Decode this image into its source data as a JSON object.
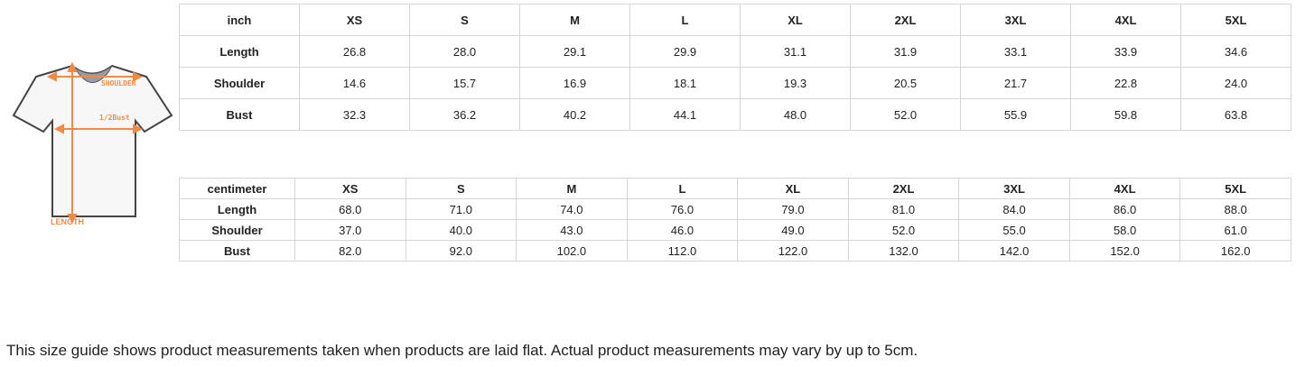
{
  "diagram": {
    "labels": {
      "shoulder": "SHOULDER",
      "bust": "1/2Bust",
      "length": "LENGTH"
    },
    "accent_color": "#f08a45"
  },
  "inch_table": {
    "headers": [
      "inch",
      "XS",
      "S",
      "M",
      "L",
      "XL",
      "2XL",
      "3XL",
      "4XL",
      "5XL"
    ],
    "rows": [
      [
        "Length",
        "26.8",
        "28.0",
        "29.1",
        "29.9",
        "31.1",
        "31.9",
        "33.1",
        "33.9",
        "34.6"
      ],
      [
        "Shoulder",
        "14.6",
        "15.7",
        "16.9",
        "18.1",
        "19.3",
        "20.5",
        "21.7",
        "22.8",
        "24.0"
      ],
      [
        "Bust",
        "32.3",
        "36.2",
        "40.2",
        "44.1",
        "48.0",
        "52.0",
        "55.9",
        "59.8",
        "63.8"
      ]
    ]
  },
  "cm_table": {
    "headers": [
      "centimeter",
      "XS",
      "S",
      "M",
      "L",
      "XL",
      "2XL",
      "3XL",
      "4XL",
      "5XL"
    ],
    "rows": [
      [
        "Length",
        "68.0",
        "71.0",
        "74.0",
        "76.0",
        "79.0",
        "81.0",
        "84.0",
        "86.0",
        "88.0"
      ],
      [
        "Shoulder",
        "37.0",
        "40.0",
        "43.0",
        "46.0",
        "49.0",
        "52.0",
        "55.0",
        "58.0",
        "61.0"
      ],
      [
        "Bust",
        "82.0",
        "92.0",
        "102.0",
        "112.0",
        "122.0",
        "132.0",
        "142.0",
        "152.0",
        "162.0"
      ]
    ]
  },
  "note": "This size guide shows product measurements taken when products are laid flat. Actual product measurements may vary by up to 5cm."
}
